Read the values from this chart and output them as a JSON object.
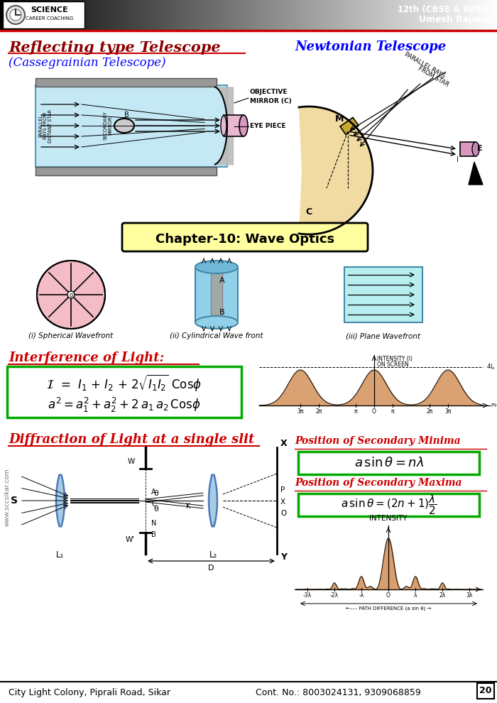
{
  "page_bg": "#ffffff",
  "header_text1": "12th (CBSE & RBSE)",
  "header_text2": "Umesh Rajoria",
  "title1": "Reflecting type Telescope",
  "title2": "(Cassegrainian Telescope)",
  "title3": "Newtonian Telescope",
  "chapter_title": "Chapter-10: Wave Optics",
  "interference_title": "Interference of Light:",
  "diffraction_title": "Diffraction of Light at a single slit",
  "sec_minima_title": "Position of Secondary Minima",
  "sec_maxima_title": "Position of Secondary Maxima",
  "footer_left": "City Light Colony, Piprali Road, Sikar",
  "footer_right": "Cont. No.: 8003024131, 9309068859",
  "page_num": "20",
  "wavefront_labels": [
    "(i) Spherical Wavefront",
    "(ii) Cylindrical Wave front",
    "(iii) Plane Wavefront"
  ],
  "watermark": "www.sccsikar.com"
}
